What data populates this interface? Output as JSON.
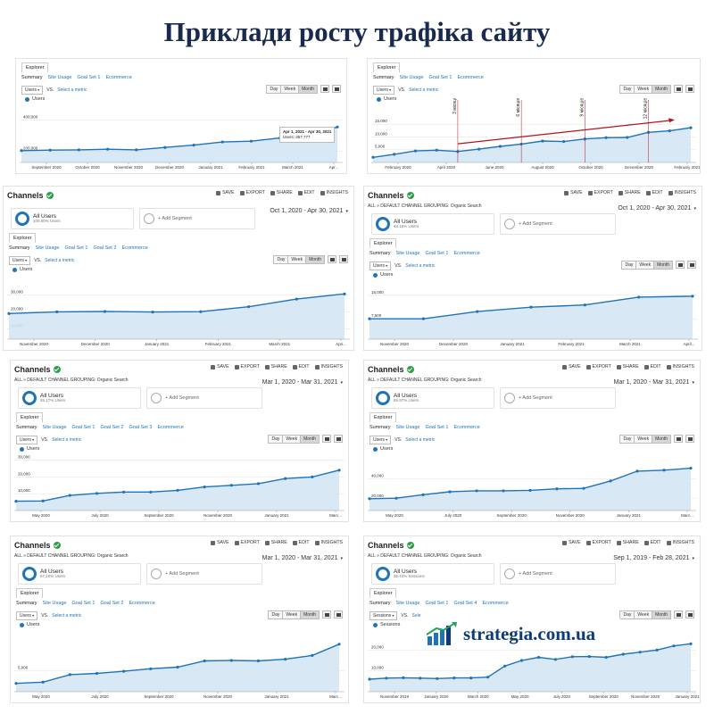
{
  "page_title": "Приклади росту трафіка сайту",
  "logo_text": "strategia.com.ua",
  "colors": {
    "line": "#1f73b8",
    "fill": "#d2e4f3",
    "annotation": "#b3141c",
    "title": "#1a2a4d"
  },
  "panels": [
    {
      "id": "p1",
      "header": null,
      "explorer_label": "Explorer",
      "subtabs": [
        "Summary",
        "Site Usage",
        "Goal Set 1",
        "Ecommerce"
      ],
      "metric": "Users",
      "vs": "VS.",
      "select_metric": "Select a metric",
      "dwm": [
        "Day",
        "Week",
        "Month"
      ],
      "legend": "Users",
      "tooltip": {
        "date": "Apr 1, 2021 - Apr 30, 2021",
        "value": "Users: 357,777"
      },
      "chart_data": {
        "type": "area",
        "series": [
          {
            "name": "Users",
            "values": [
              205000,
              208000,
              210000,
              214000,
              210000,
              225000,
              240000,
              260000,
              265000,
              285000,
              300000,
              355000
            ]
          }
        ],
        "y_ticks": [
          "400,000",
          "200,000"
        ],
        "y_tick_values": [
          400000,
          200000
        ],
        "x_labels": [
          "September 2020",
          "October 2020",
          "November 2020",
          "December 2020",
          "January 2021",
          "February 2021",
          "March 2021",
          "Apr..."
        ],
        "ylim": [
          130000,
          470000
        ]
      }
    },
    {
      "id": "p2",
      "header": null,
      "explorer_label": "Explorer",
      "subtabs": [
        "Summary",
        "Site Usage",
        "Goal Set 1",
        "Ecommerce"
      ],
      "metric": "Users",
      "vs": "VS.",
      "select_metric": "Select a metric",
      "dwm": [
        "Day",
        "Week",
        "Month"
      ],
      "legend": "Users",
      "annotations": [
        "3 місяці",
        "6 місяців",
        "9 місяців",
        "12 місяців"
      ],
      "chart_data": {
        "type": "area",
        "series": [
          {
            "name": "Users",
            "values": [
              2000,
              3200,
              4500,
              4800,
              4300,
              5200,
              6300,
              7200,
              8400,
              8200,
              9200,
              9700,
              9800,
              11800,
              12400,
              13600
            ]
          }
        ],
        "y_ticks": [
          "15,000",
          "10,000",
          "5,000"
        ],
        "y_tick_values": [
          15000,
          10000,
          5000
        ],
        "x_labels": [
          "February 2020",
          "April 2020",
          "June 2020",
          "August 2020",
          "October 2020",
          "December 2020",
          "February 2021"
        ],
        "ylim": [
          0,
          21000
        ]
      }
    },
    {
      "id": "p3",
      "header": {
        "name": "Channels",
        "actions": [
          "SAVE",
          "EXPORT",
          "SHARE",
          "EDIT",
          "INSIGHTS"
        ],
        "crumb": null,
        "date": "Oct 1, 2020 - Apr 30, 2021",
        "segment_title": "All Users",
        "segment_sub": "100.00% Users",
        "add_segment": "+ Add Segment"
      },
      "explorer_label": "Explorer",
      "subtabs": [
        "Summary",
        "Site Usage",
        "Goal Set 1",
        "Goal Set 2",
        "Ecommerce"
      ],
      "metric": "Users",
      "vs": "VS.",
      "select_metric": "Select a metric",
      "dwm": [
        "Day",
        "Week",
        "Month"
      ],
      "legend": "Users",
      "chart_data": {
        "type": "area",
        "series": [
          {
            "name": "Users",
            "values": [
              19000,
              20000,
              20200,
              19900,
              20100,
              23000,
              27500,
              30500
            ]
          }
        ],
        "y_ticks": [
          "30,000",
          "20,000",
          "10,000"
        ],
        "y_tick_values": [
          30000,
          20000,
          10000
        ],
        "x_labels": [
          "November 2020",
          "December 2020",
          "January 2021",
          "February 2021",
          "March 2021",
          "Apri..."
        ],
        "ylim": [
          4000,
          38000
        ]
      }
    },
    {
      "id": "p4",
      "header": {
        "name": "Channels",
        "actions": [
          "SAVE",
          "EXPORT",
          "SHARE",
          "EDIT",
          "INSIGHTS"
        ],
        "crumb": "ALL » DEFAULT CHANNEL GROUPING: Organic Search",
        "date": "Oct 1, 2020 - Apr 30, 2021",
        "segment_title": "All Users",
        "segment_sub": "44.15% Users",
        "add_segment": "+ Add Segment"
      },
      "explorer_label": "Explorer",
      "subtabs": [
        "Summary",
        "Site Usage",
        "Goal Set 1",
        "Ecommerce"
      ],
      "metric": "Users",
      "vs": "VS.",
      "select_metric": "Select a metric",
      "dwm": [
        "Day",
        "Week",
        "Month"
      ],
      "legend": "Users",
      "chart_data": {
        "type": "area",
        "series": [
          {
            "name": "Users",
            "values": [
              7500,
              7500,
              9800,
              11200,
              11900,
              14400,
              14700
            ]
          }
        ],
        "y_ticks": [
          "15,000",
          "7,500"
        ],
        "y_tick_values": [
          15000,
          7500
        ],
        "x_labels": [
          "November 2020",
          "December 2020",
          "January 2021",
          "February 2021",
          "March 2021",
          "April..."
        ],
        "ylim": [
          1000,
          19500
        ]
      }
    },
    {
      "id": "p5",
      "header": {
        "name": "Channels",
        "actions": [
          "SAVE",
          "EXPORT",
          "SHARE",
          "EDIT",
          "INSIGHTS"
        ],
        "crumb": "ALL » DEFAULT CHANNEL GROUPING: Organic Search",
        "date": "Mar 1, 2020 - Mar 31, 2021",
        "segment_title": "All Users",
        "segment_sub": "55.17% Users",
        "add_segment": "+ Add Segment"
      },
      "explorer_label": "Explorer",
      "subtabs": [
        "Summary",
        "Site Usage",
        "Goal Set 1",
        "Goal Set 2",
        "Goal Set 3",
        "Ecommerce"
      ],
      "metric": "Users",
      "vs": "VS.",
      "select_metric": "Select a metric",
      "dwm": [
        "Day",
        "Week",
        "Month"
      ],
      "legend": "Users",
      "chart_data": {
        "type": "area",
        "series": [
          {
            "name": "Users",
            "values": [
              5500,
              5700,
              9000,
              10200,
              11000,
              11000,
              12000,
              14000,
              15000,
              16000,
              19000,
              20000,
              24000
            ]
          }
        ],
        "y_ticks": [
          "30,000",
          "20,000",
          "10,000"
        ],
        "y_tick_values": [
          30000,
          20000,
          10000
        ],
        "x_labels": [
          "May 2020",
          "July 2020",
          "September 2020",
          "November 2020",
          "January 2021",
          "Marc..."
        ],
        "ylim": [
          0,
          34000
        ]
      }
    },
    {
      "id": "p6",
      "header": {
        "name": "Channels",
        "actions": [
          "SAVE",
          "EXPORT",
          "SHARE",
          "EDIT",
          "INSIGHTS"
        ],
        "crumb": "ALL » DEFAULT CHANNEL GROUPING: Organic Search",
        "date": "Mar 1, 2020 - Mar 31, 2021",
        "segment_title": "All Users",
        "segment_sub": "65.97% Users",
        "add_segment": "+ Add Segment"
      },
      "explorer_label": "Explorer",
      "subtabs": [
        "Summary",
        "Site Usage",
        "Goal Set 1",
        "Ecommerce"
      ],
      "metric": "Users",
      "vs": "VS.",
      "select_metric": "Select a metric",
      "dwm": [
        "Day",
        "Week",
        "Month"
      ],
      "legend": "Users",
      "chart_data": {
        "type": "area",
        "series": [
          {
            "name": "Users",
            "values": [
              20000,
              20500,
              24000,
              27000,
              28000,
              28000,
              28500,
              30000,
              30500,
              38000,
              48000,
              49000,
              51000
            ]
          }
        ],
        "y_ticks": [
          "40,000",
          "20,000"
        ],
        "y_tick_values": [
          40000,
          20000
        ],
        "x_labels": [
          "May 2020",
          "July 2020",
          "September 2020",
          "November 2020",
          "January 2021",
          "Marc..."
        ],
        "ylim": [
          8000,
          66000
        ]
      }
    },
    {
      "id": "p7",
      "header": {
        "name": "Channels",
        "actions": [
          "SAVE",
          "EXPORT",
          "SHARE",
          "EDIT",
          "INSIGHTS"
        ],
        "crumb": "ALL » DEFAULT CHANNEL GROUPING: Organic Search",
        "date": "Mar 1, 2020 - Mar 31, 2021",
        "segment_title": "All Users",
        "segment_sub": "67.10% Users",
        "add_segment": "+ Add Segment"
      },
      "explorer_label": "Explorer",
      "subtabs": [
        "Summary",
        "Site Usage",
        "Goal Set 1",
        "Goal Set 2",
        "Ecommerce"
      ],
      "metric": "Users",
      "vs": "VS.",
      "select_metric": "Select a metric",
      "dwm": [
        "Day",
        "Week",
        "Month"
      ],
      "legend": "Users",
      "chart_data": {
        "type": "area",
        "series": [
          {
            "name": "Users",
            "values": [
              2000,
              2300,
              4100,
              4400,
              4900,
              5500,
              5900,
              7400,
              7500,
              7400,
              7800,
              8700,
              11400
            ]
          }
        ],
        "y_ticks": [
          "5,000"
        ],
        "y_tick_values": [
          5000
        ],
        "x_labels": [
          "May 2020",
          "July 2020",
          "September 2020",
          "November 2020",
          "January 2021",
          "Marc..."
        ],
        "ylim": [
          0,
          15000
        ]
      }
    },
    {
      "id": "p8",
      "header": {
        "name": "Channels",
        "actions": [
          "SAVE",
          "EXPORT",
          "SHARE",
          "EDIT",
          "INSIGHTS"
        ],
        "crumb": "ALL » DEFAULT CHANNEL GROUPING: Organic Search",
        "date": "Sep 1, 2019 - Feb 28, 2021",
        "segment_title": "All Users",
        "segment_sub": "35.44% Sessions",
        "add_segment": "+ Add Segment"
      },
      "explorer_label": "Explorer",
      "subtabs": [
        "Summary",
        "Site Usage",
        "Goal Set 1",
        "Goal Set 4",
        "Ecommerce"
      ],
      "metric": "Sessions",
      "vs": "VS.",
      "select_metric": "Sele",
      "dwm": [
        "Day",
        "Week",
        "Month"
      ],
      "legend": "Sessions",
      "chart_data": {
        "type": "area",
        "series": [
          {
            "name": "Sessions",
            "values": [
              6000,
              6500,
              6700,
              6500,
              6300,
              6600,
              6600,
              7000,
              12300,
              15000,
              16500,
              15500,
              16800,
              16900,
              16500,
              18000,
              19000,
              20000,
              22000,
              23000
            ]
          }
        ],
        "y_ticks": [
          "20,000",
          "10,000"
        ],
        "y_tick_values": [
          20000,
          10000
        ],
        "x_labels": [
          "November 2019",
          "January 2020",
          "March 2020",
          "May 2020",
          "July 2020",
          "September 2020",
          "November 2020",
          "January 2021"
        ],
        "ylim": [
          0,
          30000
        ]
      }
    }
  ]
}
